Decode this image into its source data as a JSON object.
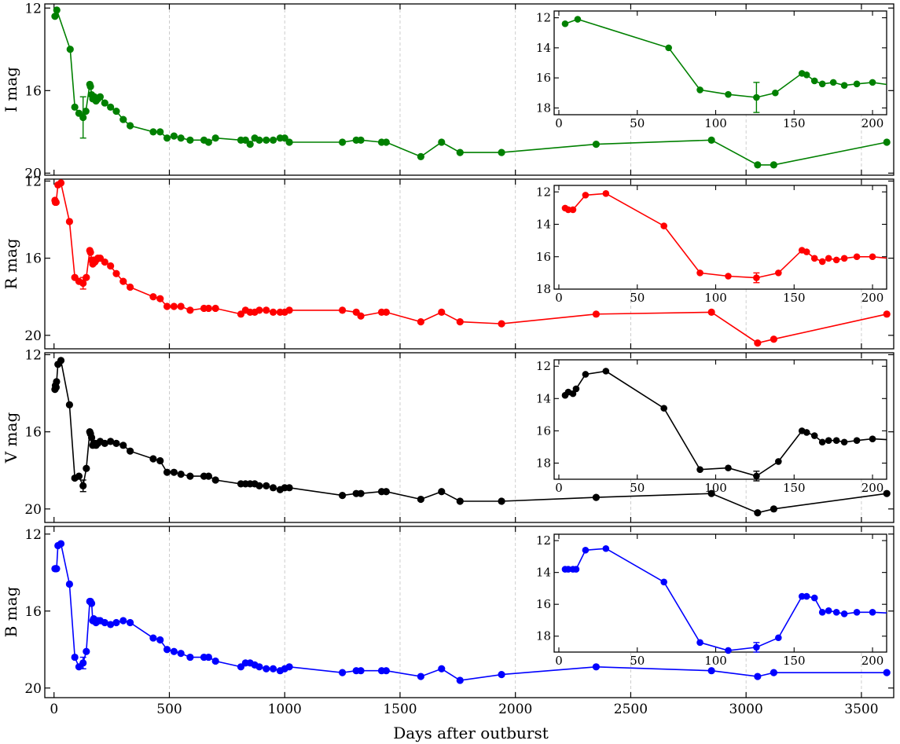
{
  "chart_data": {
    "type": "line",
    "xlabel": "Days after outburst",
    "xlim": [
      -40,
      3640
    ],
    "xticks": [
      0,
      500,
      1000,
      1500,
      2000,
      2500,
      3000,
      3500
    ],
    "grid": "vertical dashed",
    "panels": [
      {
        "name": "I",
        "ylabel": "I mag",
        "color": "#008000",
        "ylim": [
          20.1,
          11.8
        ],
        "yticks": [
          12,
          16,
          20
        ],
        "x": [
          4,
          12,
          70,
          90,
          108,
          126,
          138,
          155,
          158,
          163,
          168,
          175,
          182,
          190,
          200,
          220,
          245,
          270,
          300,
          330,
          430,
          460,
          490,
          520,
          550,
          590,
          650,
          670,
          700,
          810,
          830,
          850,
          870,
          890,
          920,
          950,
          980,
          1000,
          1020,
          1250,
          1310,
          1330,
          1420,
          1440,
          1590,
          1680,
          1760,
          1940,
          2350,
          2850,
          3050,
          3120,
          3610
        ],
        "y": [
          12.4,
          12.1,
          14.0,
          16.8,
          17.1,
          17.3,
          17.0,
          15.7,
          15.8,
          16.2,
          16.4,
          16.3,
          16.5,
          16.4,
          16.3,
          16.6,
          16.8,
          17.0,
          17.4,
          17.7,
          18.0,
          18.0,
          18.3,
          18.2,
          18.3,
          18.4,
          18.4,
          18.5,
          18.3,
          18.4,
          18.4,
          18.6,
          18.3,
          18.4,
          18.4,
          18.4,
          18.3,
          18.3,
          18.5,
          18.5,
          18.4,
          18.4,
          18.5,
          18.5,
          19.2,
          18.5,
          19.0,
          19.0,
          18.6,
          18.4,
          19.6,
          19.6,
          18.5
        ],
        "errors": [
          {
            "x": 126,
            "y": 17.3,
            "err": 1.0
          }
        ],
        "inset": {
          "xlim": [
            -3,
            209
          ],
          "ylim": [
            18.45,
            11.55
          ],
          "xticks": [
            0,
            50,
            100,
            150,
            200
          ],
          "yticks": [
            12,
            14,
            16,
            18
          ],
          "xmax": 209
        }
      },
      {
        "name": "R",
        "ylabel": "R mag",
        "color": "#ff0000",
        "ylim": [
          20.7,
          11.9
        ],
        "yticks": [
          12,
          16,
          20
        ],
        "x": [
          4,
          6,
          9,
          17,
          30,
          67,
          90,
          108,
          126,
          140,
          155,
          158,
          163,
          168,
          172,
          177,
          182,
          190,
          200,
          220,
          245,
          270,
          300,
          330,
          430,
          460,
          490,
          520,
          550,
          590,
          650,
          670,
          700,
          810,
          830,
          850,
          870,
          890,
          920,
          950,
          980,
          1000,
          1020,
          1250,
          1310,
          1330,
          1420,
          1440,
          1590,
          1680,
          1760,
          1940,
          2350,
          2850,
          3050,
          3120,
          3610
        ],
        "y": [
          13.0,
          13.1,
          13.1,
          12.2,
          12.1,
          14.1,
          17.0,
          17.2,
          17.3,
          17.0,
          15.6,
          15.7,
          16.1,
          16.3,
          16.1,
          16.2,
          16.1,
          16.0,
          16.0,
          16.2,
          16.4,
          16.8,
          17.2,
          17.5,
          18.0,
          18.1,
          18.5,
          18.5,
          18.5,
          18.7,
          18.6,
          18.6,
          18.6,
          18.9,
          18.7,
          18.8,
          18.8,
          18.7,
          18.7,
          18.8,
          18.8,
          18.8,
          18.7,
          18.7,
          18.8,
          19.0,
          18.8,
          18.8,
          19.3,
          18.8,
          19.3,
          19.4,
          18.9,
          18.8,
          20.4,
          20.2,
          18.9
        ],
        "errors": [
          {
            "x": 126,
            "y": 17.3,
            "err": 0.3
          }
        ],
        "inset": {
          "xlim": [
            -3,
            209
          ],
          "ylim": [
            18.0,
            11.6
          ],
          "xticks": [
            0,
            50,
            100,
            150,
            200
          ],
          "yticks": [
            12,
            14,
            16,
            18
          ],
          "xmax": 209
        }
      },
      {
        "name": "V",
        "ylabel": "V mag",
        "color": "#000000",
        "ylim": [
          20.7,
          11.9
        ],
        "yticks": [
          12,
          16,
          20
        ],
        "x": [
          4,
          6,
          9,
          11,
          17,
          30,
          67,
          90,
          108,
          126,
          140,
          155,
          158,
          163,
          168,
          172,
          177,
          182,
          190,
          200,
          220,
          245,
          270,
          300,
          330,
          430,
          460,
          490,
          520,
          550,
          590,
          650,
          670,
          700,
          810,
          830,
          850,
          870,
          890,
          920,
          950,
          980,
          1000,
          1020,
          1250,
          1310,
          1330,
          1420,
          1440,
          1590,
          1680,
          1760,
          1940,
          2350,
          2850,
          3050,
          3120,
          3610
        ],
        "y": [
          13.8,
          13.6,
          13.7,
          13.4,
          12.5,
          12.3,
          14.6,
          18.4,
          18.3,
          18.8,
          17.9,
          16.0,
          16.1,
          16.3,
          16.7,
          16.6,
          16.6,
          16.7,
          16.6,
          16.5,
          16.6,
          16.5,
          16.6,
          16.7,
          17.0,
          17.4,
          17.5,
          18.1,
          18.1,
          18.2,
          18.3,
          18.3,
          18.3,
          18.5,
          18.7,
          18.7,
          18.7,
          18.7,
          18.8,
          18.8,
          18.9,
          19.0,
          18.9,
          18.9,
          19.3,
          19.2,
          19.2,
          19.1,
          19.1,
          19.5,
          19.1,
          19.6,
          19.6,
          19.4,
          19.2,
          20.2,
          20.0,
          19.2
        ],
        "errors": [
          {
            "x": 126,
            "y": 18.8,
            "err": 0.3
          }
        ],
        "inset": {
          "xlim": [
            -3,
            209
          ],
          "ylim": [
            19.0,
            11.6
          ],
          "xticks": [
            0,
            50,
            100,
            150,
            200
          ],
          "yticks": [
            12,
            14,
            16,
            18
          ],
          "xmax": 209
        }
      },
      {
        "name": "B",
        "ylabel": "B mag",
        "color": "#0000ff",
        "ylim": [
          20.5,
          11.6
        ],
        "yticks": [
          12,
          16,
          20
        ],
        "x": [
          4,
          6,
          9,
          11,
          17,
          30,
          67,
          90,
          108,
          126,
          140,
          155,
          158,
          163,
          168,
          172,
          177,
          182,
          190,
          200,
          220,
          245,
          270,
          300,
          330,
          430,
          460,
          490,
          520,
          550,
          590,
          650,
          670,
          700,
          810,
          830,
          850,
          870,
          890,
          920,
          950,
          980,
          1000,
          1020,
          1250,
          1310,
          1330,
          1420,
          1440,
          1590,
          1680,
          1760,
          1940,
          2350,
          2850,
          3050,
          3120,
          3610
        ],
        "y": [
          13.8,
          13.8,
          13.8,
          13.8,
          12.6,
          12.5,
          14.6,
          18.4,
          18.9,
          18.7,
          18.1,
          15.5,
          15.5,
          15.6,
          16.5,
          16.4,
          16.5,
          16.6,
          16.5,
          16.5,
          16.6,
          16.7,
          16.6,
          16.5,
          16.6,
          17.4,
          17.5,
          18.0,
          18.1,
          18.2,
          18.4,
          18.4,
          18.4,
          18.6,
          18.9,
          18.7,
          18.7,
          18.8,
          18.9,
          19.0,
          19.0,
          19.1,
          19.0,
          18.9,
          19.2,
          19.1,
          19.1,
          19.1,
          19.1,
          19.4,
          19.0,
          19.6,
          19.3,
          18.9,
          19.1,
          19.4,
          19.2,
          19.2
        ],
        "errors": [
          {
            "x": 126,
            "y": 18.7,
            "err": 0.3
          }
        ],
        "inset": {
          "xlim": [
            -3,
            209
          ],
          "ylim": [
            19.0,
            11.6
          ],
          "xticks": [
            0,
            50,
            100,
            150,
            200
          ],
          "yticks": [
            12,
            14,
            16,
            18
          ],
          "xmax": 209
        }
      }
    ]
  }
}
